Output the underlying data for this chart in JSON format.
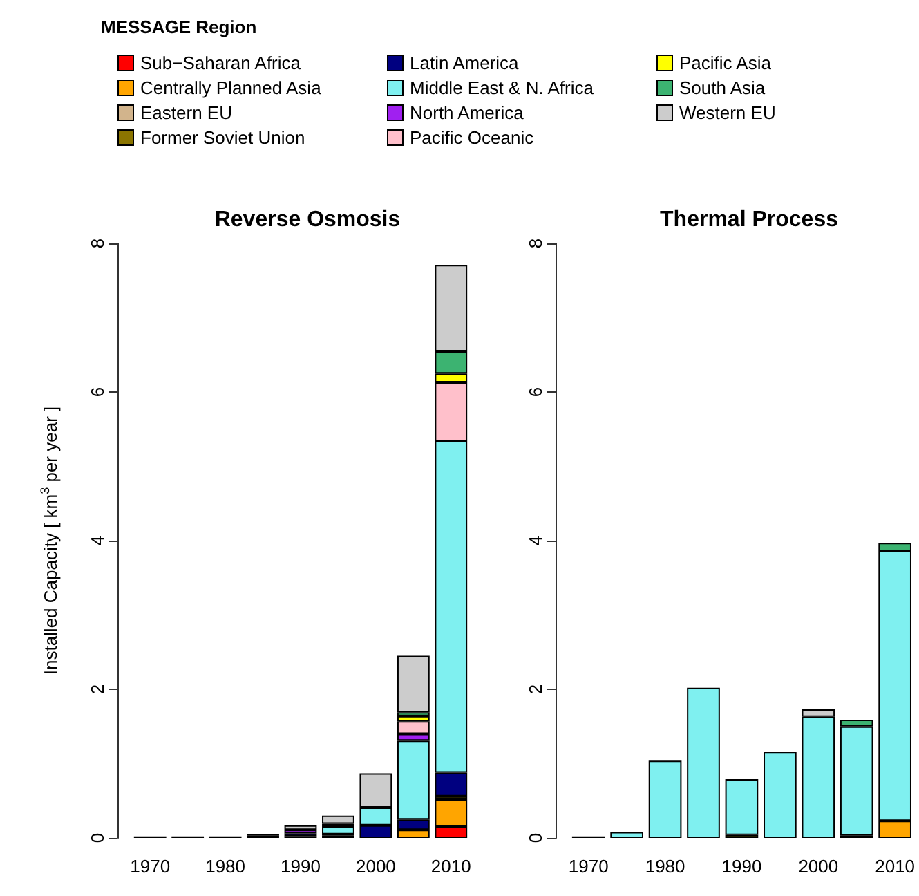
{
  "chart_data": [
    {
      "type": "bar",
      "title": "Reverse Osmosis",
      "ylabel": "Installed Capacity [ km$^{3}$ per year ]",
      "legend_title": "MESSAGE Region",
      "legend": "top",
      "stacked": true,
      "grid": false,
      "categories": [
        "1970",
        null,
        "1980",
        null,
        "1990",
        null,
        "2000",
        null,
        "2010"
      ],
      "ylim": [
        0,
        8
      ],
      "yticks": [
        0,
        2,
        4,
        6,
        8
      ],
      "series": [
        {
          "name": "Sub−Saharan Africa",
          "color": "#ff0000",
          "values": [
            null,
            null,
            null,
            null,
            null,
            null,
            null,
            null,
            0.15
          ]
        },
        {
          "name": "Centrally Planned Asia",
          "color": "#ffa500",
          "values": [
            null,
            null,
            null,
            null,
            null,
            null,
            null,
            0.11,
            0.37
          ]
        },
        {
          "name": "Eastern EU",
          "color": "#d2b48c",
          "values": [
            null,
            null,
            null,
            null,
            null,
            null,
            null,
            null,
            null
          ]
        },
        {
          "name": "Former Soviet Union",
          "color": "#8b7500",
          "values": [
            0.02,
            0.02,
            0.02,
            0.03,
            0.02,
            0.03,
            null,
            null,
            0.04
          ]
        },
        {
          "name": "Latin America",
          "color": "#000080",
          "values": [
            null,
            null,
            null,
            0.02,
            0.04,
            0.02,
            0.17,
            0.14,
            0.32
          ]
        },
        {
          "name": "Middle East & N. Africa",
          "color": "#7ff0f0",
          "values": [
            null,
            null,
            null,
            null,
            null,
            0.1,
            0.24,
            1.06,
            4.46
          ]
        },
        {
          "name": "North America",
          "color": "#a020f0",
          "values": [
            null,
            null,
            null,
            null,
            0.05,
            0.04,
            null,
            0.09,
            null
          ]
        },
        {
          "name": "Pacific Oceanic",
          "color": "#ffc0cb",
          "values": [
            null,
            null,
            null,
            null,
            null,
            null,
            null,
            0.17,
            0.79
          ]
        },
        {
          "name": "Pacific Asia",
          "color": "#ffff00",
          "values": [
            null,
            null,
            null,
            null,
            null,
            null,
            null,
            0.07,
            0.12
          ]
        },
        {
          "name": "South Asia",
          "color": "#3cb371",
          "values": [
            null,
            null,
            null,
            null,
            null,
            null,
            null,
            0.05,
            0.3
          ]
        },
        {
          "name": "Western EU",
          "color": "#cccccc",
          "values": [
            null,
            null,
            null,
            null,
            0.06,
            0.11,
            0.46,
            0.76,
            1.16
          ]
        }
      ]
    },
    {
      "type": "bar",
      "title": "Thermal Process",
      "stacked": true,
      "grid": false,
      "categories": [
        "1970",
        null,
        "1980",
        null,
        "1990",
        null,
        "2000",
        null,
        "2010"
      ],
      "ylim": [
        0,
        8
      ],
      "yticks": [
        0,
        2,
        4,
        6,
        8
      ],
      "series": [
        {
          "color": "#ffa500",
          "values": [
            null,
            null,
            null,
            null,
            null,
            null,
            null,
            null,
            0.23
          ]
        },
        {
          "color": "#8b7500",
          "values": [
            0.02,
            null,
            null,
            null,
            0.04,
            null,
            null,
            0.03,
            null
          ]
        },
        {
          "color": "#7ff0f0",
          "values": [
            null,
            0.08,
            1.04,
            2.02,
            0.75,
            1.16,
            1.63,
            1.47,
            3.63
          ]
        },
        {
          "color": "#3cb371",
          "values": [
            null,
            null,
            null,
            null,
            null,
            null,
            null,
            0.09,
            0.11
          ]
        },
        {
          "color": "#cccccc",
          "values": [
            null,
            null,
            null,
            null,
            null,
            null,
            0.1,
            null,
            null
          ]
        }
      ]
    }
  ]
}
